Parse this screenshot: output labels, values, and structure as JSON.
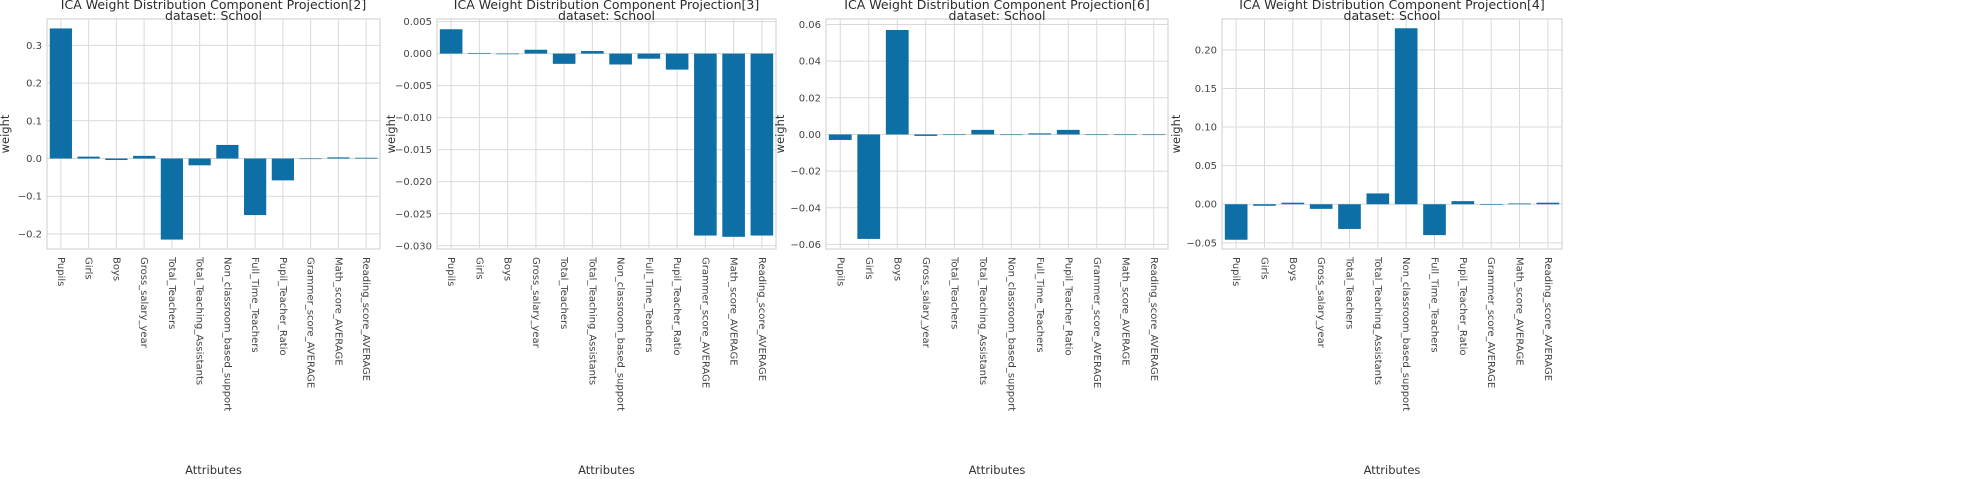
{
  "chart_data": [
    {
      "type": "bar",
      "title": "ICA Weight Distribution Component Projection[2]",
      "subtitle": "dataset: School",
      "xlabel": "Attributes",
      "ylabel": "weight",
      "categories": [
        "Pupils",
        "Girls",
        "Boys",
        "Gross_salary_year",
        "Total_Teachers",
        "Total_Teaching_Assistants",
        "Non_classroom_based_support",
        "Full_Time_Teachers",
        "Pupil_Teacher_Ratio",
        "Grammer_score_AVERAGE",
        "Math_score_AVERAGE",
        "Reading_score_AVERAGE"
      ],
      "values": [
        0.345,
        0.005,
        -0.004,
        0.007,
        -0.215,
        -0.018,
        0.036,
        -0.15,
        -0.058,
        0.0,
        0.003,
        0.002
      ],
      "yticks": [
        0.3,
        0.2,
        0.1,
        0.0,
        -0.1,
        -0.2
      ],
      "ytick_labels": [
        "0.3",
        "0.2",
        "0.1",
        "0.0",
        "−0.1",
        "−0.2"
      ],
      "ylim": [
        -0.24,
        0.37
      ],
      "grid": true
    },
    {
      "type": "bar",
      "title": "ICA Weight Distribution Component Projection[3]",
      "subtitle": "dataset: School",
      "xlabel": "Attributes",
      "ylabel": "weight",
      "categories": [
        "Pupils",
        "Girls",
        "Boys",
        "Gross_salary_year",
        "Total_Teachers",
        "Total_Teaching_Assistants",
        "Non_classroom_based_support",
        "Full_Time_Teachers",
        "Pupil_Teacher_Ratio",
        "Grammer_score_AVERAGE",
        "Math_score_AVERAGE",
        "Reading_score_AVERAGE"
      ],
      "values": [
        0.0038,
        0.0001,
        -0.0001,
        0.0006,
        -0.0016,
        0.0004,
        -0.0017,
        -0.0008,
        -0.0025,
        -0.0284,
        -0.0286,
        -0.0284
      ],
      "yticks": [
        0.005,
        0.0,
        -0.005,
        -0.01,
        -0.015,
        -0.02,
        -0.025,
        -0.03
      ],
      "ytick_labels": [
        "0.005",
        "0.000",
        "−0.005",
        "−0.010",
        "−0.015",
        "−0.020",
        "−0.025",
        "−0.030"
      ],
      "ylim": [
        -0.0305,
        0.0054
      ],
      "grid": true
    },
    {
      "type": "bar",
      "title": "ICA Weight Distribution Component Projection[6]",
      "subtitle": "dataset: School",
      "xlabel": "Attributes",
      "ylabel": "weight",
      "categories": [
        "Pupils",
        "Girls",
        "Boys",
        "Gross_salary_year",
        "Total_Teachers",
        "Total_Teaching_Assistants",
        "Non_classroom_based_support",
        "Full_Time_Teachers",
        "Pupil_Teacher_Ratio",
        "Grammer_score_AVERAGE",
        "Math_score_AVERAGE",
        "Reading_score_AVERAGE"
      ],
      "values": [
        -0.003,
        -0.057,
        0.057,
        -0.0008,
        0.0,
        0.0025,
        0.0,
        0.0006,
        0.0025,
        0.0,
        0.0,
        0.0
      ],
      "yticks": [
        0.06,
        0.04,
        0.02,
        0.0,
        -0.02,
        -0.04,
        -0.06
      ],
      "ytick_labels": [
        "0.06",
        "0.04",
        "0.02",
        "0.00",
        "−0.02",
        "−0.04",
        "−0.06"
      ],
      "ylim": [
        -0.0625,
        0.063
      ],
      "grid": true
    },
    {
      "type": "bar",
      "title": "ICA Weight Distribution Component Projection[4]",
      "subtitle": "dataset: School",
      "xlabel": "Attributes",
      "ylabel": "weight",
      "categories": [
        "Pupils",
        "Girls",
        "Boys",
        "Gross_salary_year",
        "Total_Teachers",
        "Total_Teaching_Assistants",
        "Non_classroom_based_support",
        "Full_Time_Teachers",
        "Pupil_Teacher_Ratio",
        "Grammer_score_AVERAGE",
        "Math_score_AVERAGE",
        "Reading_score_AVERAGE"
      ],
      "values": [
        -0.046,
        -0.002,
        0.002,
        -0.006,
        -0.032,
        0.014,
        0.228,
        -0.04,
        0.004,
        0.0,
        0.001,
        0.002
      ],
      "yticks": [
        0.2,
        0.15,
        0.1,
        0.05,
        0.0,
        -0.05
      ],
      "ytick_labels": [
        "0.20",
        "0.15",
        "0.10",
        "0.05",
        "0.00",
        "−0.05"
      ],
      "ylim": [
        -0.058,
        0.24
      ],
      "grid": true
    }
  ]
}
